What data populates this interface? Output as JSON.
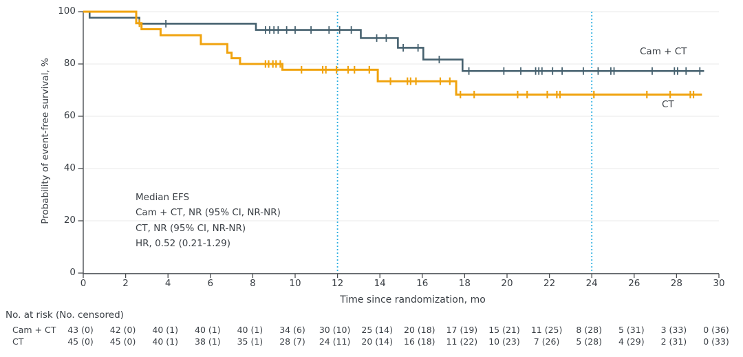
{
  "figure": {
    "y_axis_label": "Probability of event-free survival, %",
    "x_axis_label": "Time since randomization, mo",
    "annotation": {
      "line1": "Median EFS",
      "line2": "Cam + CT, NR (95% CI, NR-NR)",
      "line3": "CT, NR (95% CI, NR-NR)",
      "line4": "HR, 0.52 (0.21-1.29)"
    },
    "risk_table": {
      "header": "No. at risk (No. censored)",
      "rows": [
        {
          "label": "Cam + CT",
          "values": [
            "43 (0)",
            "42 (0)",
            "40 (1)",
            "40 (1)",
            "40 (1)",
            "34 (6)",
            "30 (10)",
            "25 (14)",
            "20 (18)",
            "17 (19)",
            "15 (21)",
            "11 (25)",
            "8 (28)",
            "5 (31)",
            "3 (33)",
            "0 (36)"
          ]
        },
        {
          "label": "CT",
          "values": [
            "45 (0)",
            "45 (0)",
            "40 (1)",
            "38 (1)",
            "35 (1)",
            "28 (7)",
            "24 (11)",
            "20 (14)",
            "16 (18)",
            "11 (22)",
            "10 (23)",
            "7 (26)",
            "5 (28)",
            "4 (29)",
            "2 (31)",
            "0 (33)"
          ]
        }
      ]
    }
  },
  "chart_data": {
    "type": "line",
    "subtype": "kaplan-meier-step-curves",
    "title": "",
    "xlabel": "Time since randomization, mo",
    "ylabel": "Probability of event-free survival, %",
    "xlim": [
      0,
      30
    ],
    "ylim": [
      0,
      100
    ],
    "xticks": [
      0,
      2,
      4,
      6,
      8,
      10,
      12,
      14,
      16,
      18,
      20,
      22,
      24,
      26,
      28,
      30
    ],
    "yticks": [
      0,
      20,
      40,
      60,
      80,
      100
    ],
    "grid": "horizontal-light",
    "reference_lines_x": [
      12,
      24
    ],
    "legend_position": "right-of-curves",
    "series": [
      {
        "name": "Cam + CT",
        "color": "#45606E",
        "steps": [
          [
            0,
            100
          ],
          [
            0.3,
            97.7
          ],
          [
            2.65,
            95.4
          ],
          [
            8.15,
            93.0
          ],
          [
            13.1,
            89.9
          ],
          [
            14.85,
            86.2
          ],
          [
            16.05,
            81.7
          ],
          [
            17.9,
            77.3
          ]
        ],
        "end_x": 29.3,
        "censor_x": [
          3.9,
          8.6,
          8.8,
          9.0,
          9.2,
          9.6,
          10.0,
          10.75,
          11.6,
          12.1,
          12.65,
          13.85,
          14.3,
          15.1,
          15.8,
          16.8,
          18.2,
          19.85,
          20.65,
          21.35,
          21.5,
          21.65,
          22.15,
          22.6,
          23.6,
          24.3,
          24.9,
          25.05,
          26.85,
          27.9,
          28.05,
          28.45,
          29.1
        ]
      },
      {
        "name": "CT",
        "color": "#F0A30E",
        "steps": [
          [
            0,
            100
          ],
          [
            2.5,
            95.6
          ],
          [
            2.75,
            93.3
          ],
          [
            3.65,
            91.0
          ],
          [
            5.55,
            87.6
          ],
          [
            6.8,
            84.3
          ],
          [
            7.0,
            82.2
          ],
          [
            7.4,
            80.0
          ],
          [
            9.4,
            77.8
          ],
          [
            13.9,
            73.4
          ],
          [
            17.6,
            68.3
          ]
        ],
        "end_x": 29.2,
        "censor_x": [
          2.65,
          8.6,
          8.75,
          8.95,
          9.1,
          9.3,
          10.3,
          11.3,
          11.45,
          11.95,
          12.5,
          12.8,
          13.5,
          14.5,
          15.3,
          15.45,
          15.7,
          16.85,
          17.3,
          17.8,
          18.45,
          20.5,
          20.95,
          21.9,
          22.35,
          22.5,
          24.1,
          26.6,
          27.7,
          28.65,
          28.8
        ]
      }
    ]
  },
  "colors": {
    "cam_ct_series": "#45606E",
    "ct_series": "#F0A30E",
    "reference_line": "#2FB0E2",
    "gridline": "#E9E9E9",
    "axis": "#4A4E52",
    "text": "#3B4046"
  }
}
